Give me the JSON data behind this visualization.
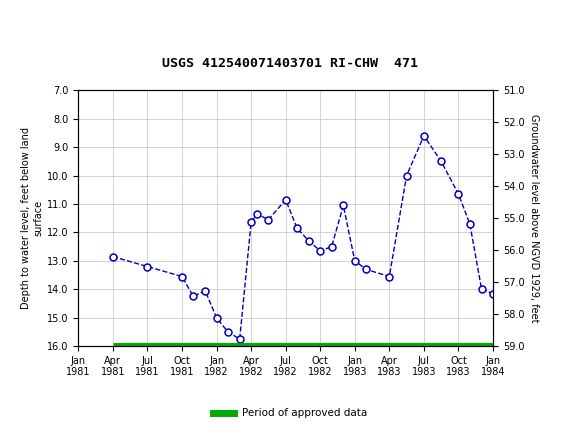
{
  "title": "USGS 412540071403701 RI-CHW  471",
  "header_color": "#1a7040",
  "ylabel_left": "Depth to water level, feet below land\nsurface",
  "ylabel_right": "Groundwater level above NGVD 1929, feet",
  "ylim_left": [
    7.0,
    16.0
  ],
  "ylim_right": [
    59.0,
    51.0
  ],
  "yticks_left": [
    7.0,
    8.0,
    9.0,
    10.0,
    11.0,
    12.0,
    13.0,
    14.0,
    15.0,
    16.0
  ],
  "yticks_right": [
    59.0,
    58.0,
    57.0,
    56.0,
    55.0,
    54.0,
    53.0,
    52.0,
    51.0
  ],
  "x_tick_labels": [
    "Jan\n1981",
    "Apr\n1981",
    "Jul\n1981",
    "Oct\n1981",
    "Jan\n1982",
    "Apr\n1982",
    "Jul\n1982",
    "Oct\n1982",
    "Jan\n1983",
    "Apr\n1983",
    "Jul\n1983",
    "Oct\n1983",
    "Jan\n1984"
  ],
  "x_tick_positions": [
    0,
    1,
    2,
    3,
    4,
    5,
    6,
    7,
    8,
    9,
    10,
    11,
    12
  ],
  "data_x": [
    1,
    2,
    3,
    3.33,
    3.67,
    4.0,
    4.33,
    4.67,
    5.0,
    5.17,
    5.5,
    6.0,
    6.33,
    6.67,
    7.0,
    7.33,
    7.67,
    8.0,
    8.33,
    9.0,
    9.5,
    10.0,
    10.5,
    11.0,
    11.33,
    11.67,
    12.0
  ],
  "data_y": [
    12.85,
    13.2,
    13.55,
    14.25,
    14.05,
    15.0,
    15.5,
    15.75,
    11.65,
    11.35,
    11.55,
    10.85,
    11.85,
    12.3,
    12.65,
    12.5,
    11.05,
    13.0,
    13.3,
    13.55,
    10.0,
    8.6,
    9.5,
    10.65,
    11.7,
    14.0,
    14.15
  ],
  "line_color": "#0000bb",
  "marker_facecolor": "#ffffff",
  "marker_edgecolor": "#0000bb",
  "legend_bar_color": "#00aa00",
  "legend_label": "Period of approved data",
  "background_plot": "#ffffff",
  "grid_color": "#cccccc",
  "approved_bar_y": 16.0,
  "approved_bar_xmin": 0.083,
  "approved_bar_xmax": 1.0
}
